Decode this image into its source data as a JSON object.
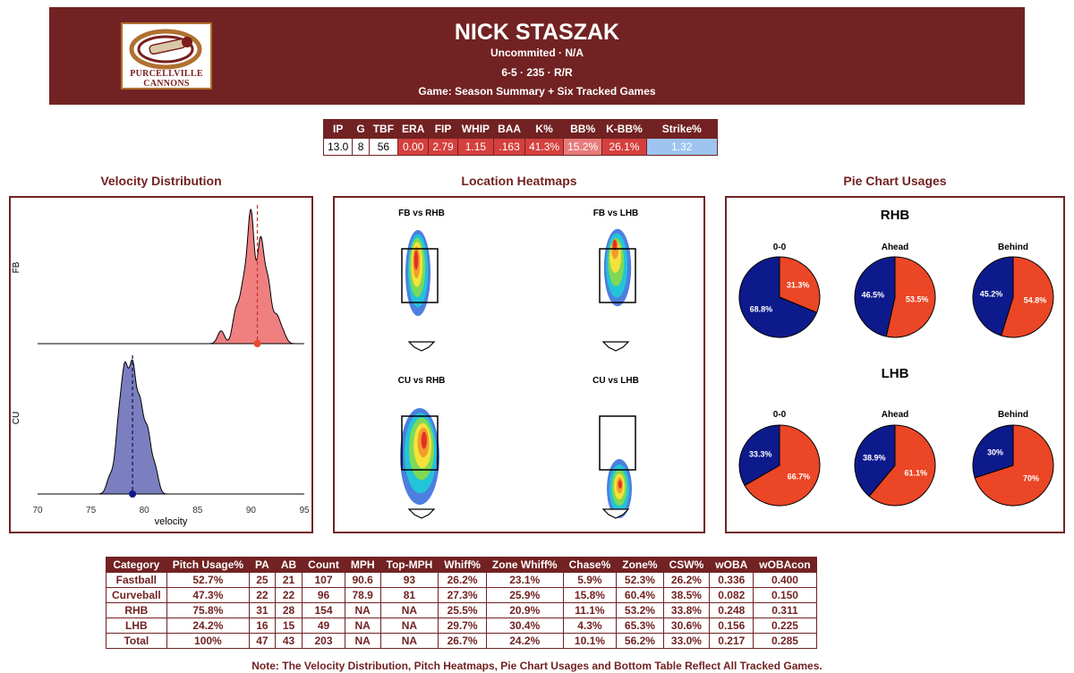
{
  "header": {
    "player_name": "NICK STASZAK",
    "school": "Uncommited · N/A",
    "bio": "6-5 · 235 · R/R",
    "game": "Game: Season Summary + Six Tracked Games",
    "logo_text_1": "PURCELLVILLE",
    "logo_text_2": "CANNONS"
  },
  "stat_line": {
    "headers": [
      "IP",
      "G",
      "TBF",
      "ERA",
      "FIP",
      "WHIP",
      "BAA",
      "K%",
      "BB%",
      "K-BB%",
      "Strike%"
    ],
    "values": [
      "13.0",
      "8",
      "56",
      "0.00",
      "2.79",
      "1.15",
      ".163",
      "41.3%",
      "15.2%",
      "26.1%",
      "1.32"
    ],
    "cell_colors": [
      "#ffffff",
      "#ffffff",
      "#ffffff",
      "#d4403e",
      "#d4403e",
      "#d4403e",
      "#d4403e",
      "#d4403e",
      "#e87b7b",
      "#d4403e",
      "#9ec5f0"
    ],
    "text_colors": [
      "#000000",
      "#000000",
      "#000000",
      "#ffffff",
      "#ffffff",
      "#ffffff",
      "#ffffff",
      "#ffffff",
      "#ffffff",
      "#ffffff",
      "#ffffff"
    ]
  },
  "sections": {
    "velocity": "Velocity Distribution",
    "heatmaps": "Location Heatmaps",
    "pies": "Pie Chart Usages"
  },
  "chart_data": [
    {
      "type": "area",
      "title": "Velocity Distribution",
      "xlabel": "velocity",
      "xlim": [
        70,
        95
      ],
      "x_ticks": [
        "70",
        "75",
        "80",
        "85",
        "90",
        "95"
      ],
      "series": [
        {
          "name": "FB",
          "mean": 90.6,
          "color": "#f08080",
          "peaks": [
            [
              87.2,
              0.1
            ],
            [
              88.6,
              0.25
            ],
            [
              89.3,
              0.42
            ],
            [
              90.0,
              1.0
            ],
            [
              90.9,
              0.78
            ],
            [
              91.6,
              0.45
            ],
            [
              92.4,
              0.2
            ],
            [
              93.0,
              0.08
            ]
          ]
        },
        {
          "name": "CU",
          "mean": 78.9,
          "color": "#7b7fbf",
          "peaks": [
            [
              76.8,
              0.15
            ],
            [
              77.6,
              0.55
            ],
            [
              78.2,
              0.95
            ],
            [
              78.9,
              1.0
            ],
            [
              79.6,
              0.7
            ],
            [
              80.3,
              0.5
            ],
            [
              81.0,
              0.22
            ]
          ]
        }
      ]
    },
    {
      "type": "heatmap",
      "title": "Location Heatmaps",
      "panels": [
        {
          "label": "FB vs RHB",
          "blobs": [
            [
              0.45,
              0.4,
              0.35,
              0.8,
              "#4c7fe0"
            ],
            [
              0.45,
              0.38,
              0.28,
              0.68,
              "#22c4d8"
            ],
            [
              0.43,
              0.35,
              0.22,
              0.55,
              "#7ed957"
            ],
            [
              0.42,
              0.32,
              0.16,
              0.42,
              "#f5e23a"
            ],
            [
              0.41,
              0.3,
              0.1,
              0.3,
              "#f39c2c"
            ],
            [
              0.4,
              0.28,
              0.06,
              0.18,
              "#e0322a"
            ]
          ]
        },
        {
          "label": "FB vs LHB",
          "blobs": [
            [
              0.5,
              0.35,
              0.38,
              0.72,
              "#4c7fe0"
            ],
            [
              0.48,
              0.33,
              0.3,
              0.6,
              "#22c4d8"
            ],
            [
              0.46,
              0.3,
              0.22,
              0.45,
              "#7ed957"
            ],
            [
              0.44,
              0.25,
              0.16,
              0.3,
              "#f5e23a"
            ],
            [
              0.43,
              0.18,
              0.1,
              0.18,
              "#f39c2c"
            ],
            [
              0.42,
              0.14,
              0.06,
              0.1,
              "#e0322a"
            ]
          ]
        },
        {
          "label": "CU vs RHB",
          "blobs": [
            [
              0.5,
              0.55,
              0.55,
              0.9,
              "#4c7fe0"
            ],
            [
              0.52,
              0.52,
              0.45,
              0.75,
              "#22c4d8"
            ],
            [
              0.55,
              0.48,
              0.35,
              0.58,
              "#7ed957"
            ],
            [
              0.58,
              0.45,
              0.25,
              0.42,
              "#f5e23a"
            ],
            [
              0.6,
              0.42,
              0.16,
              0.28,
              "#f39c2c"
            ],
            [
              0.62,
              0.4,
              0.08,
              0.16,
              "#e0322a"
            ]
          ]
        },
        {
          "label": "CU vs LHB",
          "blobs": [
            [
              0.55,
              0.85,
              0.35,
              0.55,
              "#4c7fe0"
            ],
            [
              0.55,
              0.85,
              0.28,
              0.45,
              "#22c4d8"
            ],
            [
              0.55,
              0.84,
              0.21,
              0.34,
              "#7ed957"
            ],
            [
              0.55,
              0.83,
              0.15,
              0.24,
              "#f5e23a"
            ],
            [
              0.56,
              0.82,
              0.09,
              0.15,
              "#f39c2c"
            ],
            [
              0.57,
              0.81,
              0.05,
              0.08,
              "#e0322a"
            ]
          ]
        }
      ]
    },
    {
      "type": "pie",
      "title": "Pie Chart Usages",
      "colors": {
        "fastball": "#eb4626",
        "curveball": "#0d1a8c"
      },
      "groups": [
        {
          "label": "RHB",
          "pies": [
            {
              "label": "0-0",
              "fastball": 31.3,
              "curveball": 68.8,
              "fastball_label": "31.3%",
              "curveball_label": "68.8%"
            },
            {
              "label": "Ahead",
              "fastball": 53.5,
              "curveball": 46.5,
              "fastball_label": "53.5%",
              "curveball_label": "46.5%"
            },
            {
              "label": "Behind",
              "fastball": 54.8,
              "curveball": 45.2,
              "fastball_label": "54.8%",
              "curveball_label": "45.2%"
            }
          ]
        },
        {
          "label": "LHB",
          "pies": [
            {
              "label": "0-0",
              "fastball": 66.7,
              "curveball": 33.3,
              "fastball_label": "66.7%",
              "curveball_label": "33.3%"
            },
            {
              "label": "Ahead",
              "fastball": 61.1,
              "curveball": 38.9,
              "fastball_label": "61.1%",
              "curveball_label": "38.9%"
            },
            {
              "label": "Behind",
              "fastball": 70,
              "curveball": 30,
              "fastball_label": "70%",
              "curveball_label": "30%"
            }
          ]
        }
      ]
    },
    {
      "type": "table",
      "columns": [
        "Category",
        "Pitch Usage%",
        "PA",
        "AB",
        "Count",
        "MPH",
        "Top-MPH",
        "Whiff%",
        "Zone Whiff%",
        "Chase%",
        "Zone%",
        "CSW%",
        "wOBA",
        "wOBAcon"
      ],
      "rows": [
        [
          "Fastball",
          "52.7%",
          "25",
          "21",
          "107",
          "90.6",
          "93",
          "26.2%",
          "23.1%",
          "5.9%",
          "52.3%",
          "26.2%",
          "0.336",
          "0.400"
        ],
        [
          "Curveball",
          "47.3%",
          "22",
          "22",
          "96",
          "78.9",
          "81",
          "27.3%",
          "25.9%",
          "15.8%",
          "60.4%",
          "38.5%",
          "0.082",
          "0.150"
        ],
        [
          "RHB",
          "75.8%",
          "31",
          "28",
          "154",
          "NA",
          "NA",
          "25.5%",
          "20.9%",
          "11.1%",
          "53.2%",
          "33.8%",
          "0.248",
          "0.311"
        ],
        [
          "LHB",
          "24.2%",
          "16",
          "15",
          "49",
          "NA",
          "NA",
          "29.7%",
          "30.4%",
          "4.3%",
          "65.3%",
          "30.6%",
          "0.156",
          "0.225"
        ],
        [
          "Total",
          "100%",
          "47",
          "43",
          "203",
          "NA",
          "NA",
          "26.7%",
          "24.2%",
          "10.1%",
          "56.2%",
          "33.0%",
          "0.217",
          "0.285"
        ]
      ]
    }
  ],
  "note": "Note: The Velocity Distribution, Pitch Heatmaps, Pie Chart Usages and Bottom Table Reflect All Tracked Games."
}
